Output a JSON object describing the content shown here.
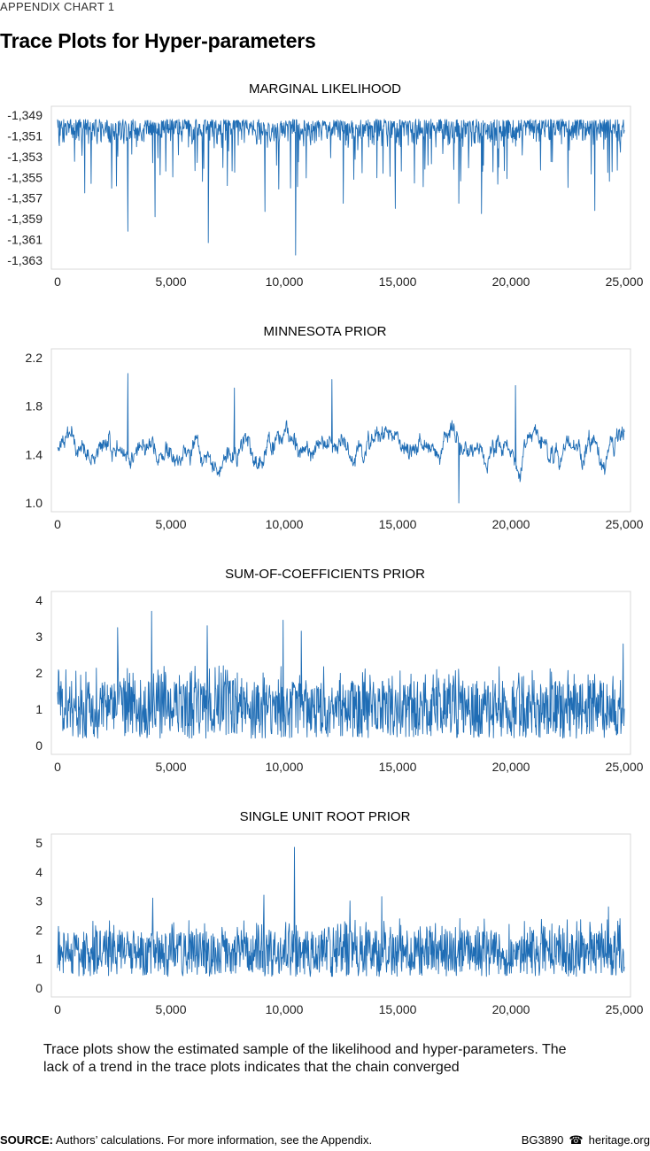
{
  "header": {
    "kicker": "APPENDIX CHART 1",
    "title": "Trace Plots for Hyper-parameters"
  },
  "colors": {
    "series": "#1f6db5",
    "axis": "#d9d9d9",
    "text": "#000000"
  },
  "chart_data": [
    {
      "type": "line",
      "title": "MARGINAL LIKELIHOOD",
      "xlim": [
        0,
        25000
      ],
      "ylim": [
        -1363,
        -1349
      ],
      "xticks": [
        0,
        5000,
        10000,
        15000,
        20000,
        25000
      ],
      "xtick_labels": [
        "0",
        "5,000",
        "10,000",
        "15,000",
        "20,000",
        "25,000"
      ],
      "yticks": [
        -1349,
        -1351,
        -1353,
        -1355,
        -1357,
        -1359,
        -1361,
        -1363
      ],
      "ytick_labels": [
        "-1,349",
        "-1,351",
        "-1,353",
        "-1,355",
        "-1,357",
        "-1,359",
        "-1,361",
        "-1,363"
      ],
      "grid": false,
      "trace_summary": {
        "samples": 25000,
        "typical_range": [
          -1352,
          -1349.4
        ],
        "min": -1362.5,
        "max": -1349.2
      },
      "spikes": [
        {
          "x": 1200,
          "y": -1356.5
        },
        {
          "x": 3100,
          "y": -1360.2
        },
        {
          "x": 4300,
          "y": -1358.8
        },
        {
          "x": 6650,
          "y": -1361.3
        },
        {
          "x": 9150,
          "y": -1358.3
        },
        {
          "x": 10500,
          "y": -1362.5
        },
        {
          "x": 12600,
          "y": -1357.5
        },
        {
          "x": 14900,
          "y": -1358.0
        },
        {
          "x": 17700,
          "y": -1357.5
        },
        {
          "x": 18700,
          "y": -1358.5
        },
        {
          "x": 23700,
          "y": -1358.2
        }
      ]
    },
    {
      "type": "line",
      "title": "MINNESOTA PRIOR",
      "xlim": [
        0,
        25000
      ],
      "ylim": [
        1.0,
        2.2
      ],
      "xticks": [
        0,
        5000,
        10000,
        15000,
        20000,
        25000
      ],
      "xtick_labels": [
        "0",
        "5,000",
        "10,000",
        "15,000",
        "20,000",
        "25,000"
      ],
      "yticks": [
        2.2,
        1.8,
        1.4,
        1.0
      ],
      "ytick_labels": [
        "2.2",
        "1.8",
        "1.4",
        "1.0"
      ],
      "grid": false,
      "trace_summary": {
        "samples": 25000,
        "typical_range": [
          1.2,
          1.7
        ],
        "min": 1.0,
        "max": 2.07
      },
      "spikes": [
        {
          "x": 3100,
          "y": 2.07
        },
        {
          "x": 7800,
          "y": 1.95
        },
        {
          "x": 12100,
          "y": 2.02
        },
        {
          "x": 17700,
          "y": 1.0
        },
        {
          "x": 20200,
          "y": 1.97
        }
      ]
    },
    {
      "type": "line",
      "title": "SUM-OF-COEFFICIENTS PRIOR",
      "xlim": [
        0,
        25000
      ],
      "ylim": [
        0,
        4
      ],
      "xticks": [
        0,
        5000,
        10000,
        15000,
        20000,
        25000
      ],
      "xtick_labels": [
        "0",
        "5,000",
        "10,000",
        "15,000",
        "20,000",
        "25,000"
      ],
      "yticks": [
        4,
        3,
        2,
        1,
        0
      ],
      "ytick_labels": [
        "4",
        "3",
        "2",
        "1",
        "0"
      ],
      "grid": false,
      "trace_summary": {
        "samples": 25000,
        "typical_range": [
          0.2,
          1.8
        ],
        "min": 0.2,
        "max": 3.7
      },
      "spikes": [
        {
          "x": 2650,
          "y": 3.25
        },
        {
          "x": 4150,
          "y": 3.7
        },
        {
          "x": 6600,
          "y": 3.3
        },
        {
          "x": 9950,
          "y": 3.45
        },
        {
          "x": 10750,
          "y": 3.15
        },
        {
          "x": 24950,
          "y": 2.8
        }
      ]
    },
    {
      "type": "line",
      "title": "SINGLE UNIT ROOT PRIOR",
      "xlim": [
        0,
        25000
      ],
      "ylim": [
        0,
        5
      ],
      "xticks": [
        0,
        5000,
        10000,
        15000,
        20000,
        25000
      ],
      "xtick_labels": [
        "0",
        "5,000",
        "10,000",
        "15,000",
        "20,000",
        "25,000"
      ],
      "yticks": [
        5,
        4,
        3,
        2,
        1,
        0
      ],
      "ytick_labels": [
        "5",
        "4",
        "3",
        "2",
        "1",
        "0"
      ],
      "grid": false,
      "trace_summary": {
        "samples": 25000,
        "typical_range": [
          0.4,
          2.0
        ],
        "min": 0.3,
        "max": 4.85
      },
      "spikes": [
        {
          "x": 4200,
          "y": 3.1
        },
        {
          "x": 9100,
          "y": 3.2
        },
        {
          "x": 10450,
          "y": 4.85
        },
        {
          "x": 12900,
          "y": 3.0
        },
        {
          "x": 14300,
          "y": 3.15
        },
        {
          "x": 24300,
          "y": 2.8
        }
      ]
    }
  ],
  "note": "Trace plots show the estimated sample of the likelihood and hyper-parameters. The lack of a trend in the trace plots indicates that the chain converged",
  "footer": {
    "source_label": "SOURCE:",
    "source_text": " Authors’ calculations. For more information, see the Appendix.",
    "code": "BG3890",
    "site": "heritage.org"
  }
}
